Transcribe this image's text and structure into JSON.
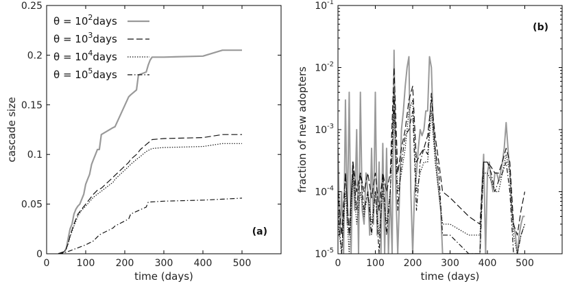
{
  "chart_data": [
    {
      "type": "line",
      "panel_label": "(a)",
      "xlabel": "time (days)",
      "ylabel": "cascade size",
      "xlim": [
        0,
        600
      ],
      "ylim": [
        0,
        0.25
      ],
      "xticks": [
        0,
        100,
        200,
        300,
        400,
        500
      ],
      "yticks": [
        0,
        0.05,
        0.1,
        0.15,
        0.2,
        0.25
      ],
      "ytick_labels": [
        "0",
        "0.05",
        "0.1",
        "0.15",
        "0.2",
        "0.25"
      ],
      "legend_position": "top-left",
      "series": [
        {
          "name": "θ = 10²days",
          "label_base": "θ = 10",
          "label_exp": "2",
          "label_unit": "days",
          "color": "#999999",
          "style": "solid",
          "x": [
            30,
            45,
            50,
            55,
            60,
            65,
            70,
            75,
            80,
            85,
            90,
            95,
            100,
            105,
            110,
            115,
            120,
            125,
            130,
            135,
            140,
            170,
            175,
            210,
            215,
            230,
            235,
            255,
            260,
            265,
            270,
            300,
            400,
            450,
            500
          ],
          "y": [
            0,
            0.002,
            0.005,
            0.015,
            0.025,
            0.03,
            0.04,
            0.045,
            0.048,
            0.05,
            0.055,
            0.06,
            0.07,
            0.075,
            0.08,
            0.09,
            0.095,
            0.1,
            0.105,
            0.105,
            0.12,
            0.127,
            0.128,
            0.158,
            0.16,
            0.165,
            0.18,
            0.183,
            0.19,
            0.195,
            0.198,
            0.198,
            0.199,
            0.205,
            0.205
          ]
        },
        {
          "name": "θ = 10³days",
          "label_base": "θ = 10",
          "label_exp": "3",
          "label_unit": "days",
          "color": "#111111",
          "style": "dashed",
          "x": [
            30,
            45,
            50,
            55,
            60,
            70,
            80,
            90,
            100,
            120,
            130,
            140,
            170,
            175,
            210,
            215,
            230,
            240,
            255,
            270,
            300,
            400,
            450,
            500
          ],
          "y": [
            0,
            0.002,
            0.005,
            0.01,
            0.018,
            0.03,
            0.04,
            0.045,
            0.05,
            0.06,
            0.064,
            0.066,
            0.077,
            0.079,
            0.092,
            0.095,
            0.1,
            0.105,
            0.11,
            0.115,
            0.116,
            0.117,
            0.12,
            0.12
          ]
        },
        {
          "name": "θ = 10⁴days",
          "label_base": "θ = 10",
          "label_exp": "4",
          "label_unit": "days",
          "color": "#111111",
          "style": "dotted",
          "x": [
            30,
            45,
            50,
            55,
            60,
            70,
            80,
            90,
            100,
            120,
            130,
            140,
            170,
            175,
            210,
            215,
            230,
            240,
            255,
            270,
            300,
            400,
            450,
            500
          ],
          "y": [
            0,
            0.002,
            0.005,
            0.01,
            0.017,
            0.028,
            0.038,
            0.044,
            0.048,
            0.057,
            0.06,
            0.063,
            0.072,
            0.075,
            0.088,
            0.09,
            0.095,
            0.098,
            0.103,
            0.106,
            0.107,
            0.108,
            0.111,
            0.111
          ]
        },
        {
          "name": "θ = 10⁵days",
          "label_base": "θ = 10",
          "label_exp": "5",
          "label_unit": "days",
          "color": "#111111",
          "style": "dashdot",
          "x": [
            30,
            45,
            60,
            80,
            100,
            120,
            135,
            140,
            170,
            175,
            210,
            215,
            255,
            260,
            300,
            400,
            450,
            500
          ],
          "y": [
            0,
            0.001,
            0.003,
            0.006,
            0.009,
            0.013,
            0.019,
            0.02,
            0.026,
            0.028,
            0.035,
            0.04,
            0.047,
            0.052,
            0.053,
            0.054,
            0.055,
            0.056
          ]
        }
      ]
    },
    {
      "type": "line",
      "panel_label": "(b)",
      "xlabel": "time (days)",
      "ylabel": "fraction of new adopters",
      "xlim": [
        0,
        600
      ],
      "yscale": "log",
      "ylim": [
        1e-05,
        0.1
      ],
      "xticks": [
        0,
        100,
        200,
        300,
        400,
        500
      ],
      "yticks": [
        1e-05,
        0.0001,
        0.001,
        0.01,
        0.1
      ],
      "ytick_base": "10",
      "ytick_exps": [
        "-5",
        "-4",
        "-3",
        "-2",
        "-1"
      ],
      "series": [
        {
          "name": "",
          "color": "#999999",
          "style": "solid",
          "x": [
            0,
            5,
            10,
            15,
            20,
            25,
            30,
            35,
            40,
            45,
            50,
            55,
            60,
            65,
            70,
            75,
            80,
            85,
            90,
            95,
            100,
            105,
            110,
            115,
            120,
            125,
            130,
            135,
            140,
            145,
            150,
            155,
            160,
            165,
            170,
            175,
            180,
            185,
            190,
            195,
            200,
            205,
            210,
            215,
            220,
            225,
            230,
            235,
            240,
            245,
            250,
            255,
            260,
            265,
            270,
            275,
            280,
            350,
            355,
            380,
            385,
            390,
            395,
            400,
            405,
            410,
            415,
            420,
            425,
            430,
            435,
            440,
            445,
            450,
            455,
            460,
            465,
            470,
            475,
            480,
            485,
            490,
            495,
            500
          ],
          "y": [
            0.0005,
            2e-05,
            0.0001,
            1e-05,
            0.003,
            3e-05,
            0.004,
            1e-05,
            0.0003,
            5e-05,
            0.001,
            1e-05,
            0.004,
            5e-05,
            3e-05,
            0.0002,
            0.0001,
            2e-05,
            0.0005,
            3e-05,
            0.004,
            2e-05,
            0.0003,
            1e-05,
            0.0006,
            1e-05,
            0.0005,
            1e-05,
            0.0001,
            1e-05,
            0.019,
            0.0001,
            1e-05,
            0.0001,
            0.001,
            0.002,
            0.005,
            0.01,
            0.015,
            0.0001,
            1e-05,
            0.0001,
            0.0002,
            0.0005,
            0.001,
            0.0008,
            0.001,
            0.002,
            0.002,
            0.015,
            0.01,
            0.001,
            0.0005,
            0.0002,
            0.0001,
            5e-05,
            1e-05,
            1e-05,
            1e-05,
            1e-05,
            0.0001,
            0.0004,
            1e-05,
            0.0002,
            0.0003,
            0.00015,
            0.0001,
            0.0002,
            0.0002,
            0.00015,
            0.0002,
            0.0003,
            0.0005,
            0.0013,
            0.0005,
            0.0002,
            5e-05,
            3e-05,
            2e-05,
            1e-05,
            2e-05,
            3e-05,
            4e-05,
            4e-05
          ]
        },
        {
          "name": "",
          "color": "#111111",
          "style": "dashed",
          "x": [
            0,
            10,
            20,
            30,
            40,
            50,
            60,
            70,
            80,
            90,
            100,
            110,
            120,
            130,
            140,
            150,
            160,
            170,
            180,
            190,
            200,
            210,
            220,
            230,
            240,
            250,
            260,
            270,
            280,
            300,
            350,
            380,
            390,
            400,
            410,
            420,
            430,
            440,
            450,
            460,
            470,
            480,
            490,
            500
          ],
          "y": [
            0.0001,
            2e-05,
            0.0002,
            2e-05,
            0.0003,
            0.0001,
            0.0002,
            0.0001,
            0.0002,
            8e-05,
            0.0002,
            5e-05,
            0.0002,
            0.0001,
            0.0002,
            0.01,
            0.0002,
            0.0005,
            0.001,
            0.003,
            0.005,
            0.0003,
            0.0004,
            0.0005,
            0.0008,
            0.003,
            0.0008,
            0.0003,
            0.0001,
            8e-05,
            4e-05,
            3e-05,
            0.0003,
            0.0003,
            0.00025,
            0.0002,
            0.0002,
            0.0003,
            0.0005,
            0.0003,
            3e-05,
            2e-05,
            5e-05,
            0.0001
          ]
        },
        {
          "name": "",
          "color": "#111111",
          "style": "dotted",
          "x": [
            0,
            10,
            20,
            30,
            40,
            50,
            60,
            70,
            80,
            90,
            100,
            110,
            120,
            130,
            140,
            150,
            160,
            170,
            180,
            190,
            200,
            210,
            220,
            230,
            240,
            250,
            260,
            270,
            280,
            300,
            350,
            380,
            390,
            400,
            410,
            420,
            430,
            440,
            450,
            460,
            470,
            480,
            490,
            500
          ],
          "y": [
            3e-05,
            1e-05,
            0.0001,
            1e-05,
            0.0002,
            3e-05,
            0.0001,
            4e-05,
            0.0001,
            3e-05,
            0.0001,
            2e-05,
            0.0001,
            3e-05,
            0.0001,
            0.002,
            0.0001,
            0.0002,
            0.0005,
            0.002,
            0.003,
            0.0001,
            0.0002,
            0.0003,
            0.0003,
            0.002,
            0.0003,
            0.0001,
            3e-05,
            3e-05,
            2e-05,
            2e-05,
            0.0002,
            0.0002,
            0.00015,
            0.0001,
            0.0001,
            0.0002,
            0.0004,
            0.0002,
            2e-05,
            1e-05,
            2e-05,
            3e-05
          ]
        },
        {
          "name": "",
          "color": "#111111",
          "style": "dashdot",
          "x": [
            0,
            10,
            20,
            30,
            40,
            50,
            60,
            70,
            80,
            90,
            100,
            110,
            120,
            130,
            140,
            150,
            160,
            170,
            180,
            190,
            200,
            210,
            220,
            230,
            240,
            250,
            260,
            270,
            280,
            300,
            350,
            380,
            390,
            400,
            410,
            420,
            430,
            440,
            450,
            460,
            470,
            480,
            490,
            500
          ],
          "y": [
            5e-05,
            1e-05,
            0.0002,
            2e-05,
            0.0003,
            5e-05,
            0.0002,
            5e-05,
            0.0001,
            2e-05,
            0.0001,
            1e-05,
            0.0002,
            2e-05,
            0.0001,
            0.004,
            5e-05,
            0.0003,
            0.0008,
            0.001,
            0.002,
            5e-05,
            0.0003,
            0.0005,
            0.0004,
            0.004,
            0.0005,
            0.0002,
            2e-05,
            2e-05,
            1e-05,
            1e-05,
            0.0003,
            0.0003,
            0.0002,
            0.0001,
            0.00015,
            0.0002,
            0.0003,
            0.0001,
            1e-05,
            1e-05,
            2e-05,
            3e-05
          ]
        }
      ]
    }
  ]
}
